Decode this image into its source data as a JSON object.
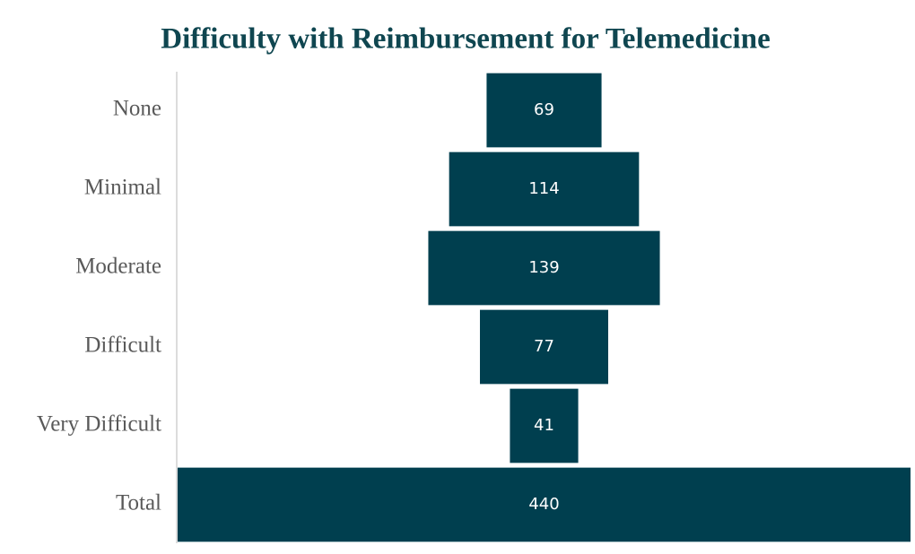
{
  "chart_data": {
    "type": "funnel",
    "title": "Difficulty with Reimbursement for Telemedicine",
    "categories": [
      "None",
      "Minimal",
      "Moderate",
      "Difficult",
      "Very Difficult",
      "Total"
    ],
    "values": [
      69,
      114,
      139,
      77,
      41,
      440
    ],
    "color": "#003f4f"
  }
}
